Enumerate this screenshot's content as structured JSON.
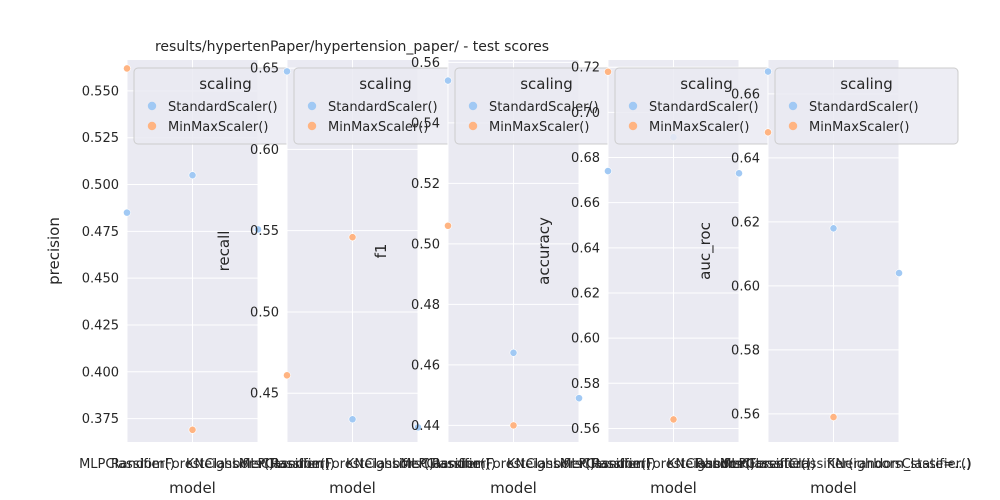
{
  "chart_data": [
    {
      "type": "scatter",
      "title": "results/hypertenPaper/hypertension_paper/ - test scores",
      "xlabel": "model",
      "ylabel": "precision",
      "ylim": [
        0.3625,
        0.5665
      ],
      "yticks": [
        "0.375",
        "0.400",
        "0.425",
        "0.450",
        "0.475",
        "0.500",
        "0.525",
        "0.550"
      ],
      "categories": [
        "MLPClassifier()",
        "RandomForestClassifier()",
        "KNeighborsClassifier()"
      ],
      "legend_title": "scaling",
      "legend_labels": [
        "StandardScaler()",
        "MinMaxScaler()"
      ],
      "series": [
        {
          "name": "StandardScaler()",
          "values": [
            0.485,
            0.505,
            0.476
          ]
        },
        {
          "name": "MinMaxScaler()",
          "values": [
            0.562,
            0.369,
            null
          ]
        }
      ]
    },
    {
      "type": "scatter",
      "title": "",
      "xlabel": "model",
      "ylabel": "recall",
      "ylim": [
        0.42,
        0.655
      ],
      "yticks": [
        "0.45",
        "0.50",
        "0.55",
        "0.60",
        "0.65"
      ],
      "categories": [
        "MLPClassifier()",
        "RandomForestClassifier()",
        "KNeighborsClassifier()"
      ],
      "legend_title": "scaling",
      "legend_labels": [
        "StandardScaler()",
        "MinMaxScaler()"
      ],
      "series": [
        {
          "name": "StandardScaler()",
          "values": [
            0.648,
            0.434,
            0.429
          ]
        },
        {
          "name": "MinMaxScaler()",
          "values": [
            0.461,
            0.546,
            null
          ]
        }
      ]
    },
    {
      "type": "scatter",
      "title": "",
      "xlabel": "model",
      "ylabel": "f1",
      "ylim": [
        0.4345,
        0.5608
      ],
      "yticks": [
        "0.44",
        "0.46",
        "0.48",
        "0.50",
        "0.52",
        "0.54",
        "0.56"
      ],
      "categories": [
        "MLPClassifier()",
        "RandomForestClassifier()",
        "KNeighborsClassifier()"
      ],
      "legend_title": "scaling",
      "legend_labels": [
        "StandardScaler()",
        "MinMaxScaler()"
      ],
      "series": [
        {
          "name": "StandardScaler()",
          "values": [
            0.554,
            0.464,
            0.449
          ]
        },
        {
          "name": "MinMaxScaler()",
          "values": [
            0.506,
            0.44,
            null
          ]
        }
      ]
    },
    {
      "type": "scatter",
      "title": "",
      "xlabel": "model",
      "ylabel": "accuracy",
      "ylim": [
        0.554,
        0.7232
      ],
      "yticks": [
        "0.56",
        "0.58",
        "0.60",
        "0.62",
        "0.64",
        "0.66",
        "0.68",
        "0.70",
        "0.72"
      ],
      "categories": [
        "MLPClassifier()",
        "RandomForestClassifier()",
        "KNeighborsClassifier()"
      ],
      "legend_title": "scaling",
      "legend_labels": [
        "StandardScaler()",
        "MinMaxScaler()"
      ],
      "series": [
        {
          "name": "StandardScaler()",
          "values": [
            0.674,
            0.689,
            0.673
          ]
        },
        {
          "name": "MinMaxScaler()",
          "values": [
            0.718,
            0.564,
            null
          ]
        }
      ]
    },
    {
      "type": "scatter",
      "title": "",
      "xlabel": "model",
      "ylabel": "auc_roc",
      "ylim": [
        0.5512,
        0.6706
      ],
      "yticks": [
        "0.56",
        "0.58",
        "0.60",
        "0.62",
        "0.64",
        "0.66"
      ],
      "categories": [
        "MLPClassifier()",
        "RandomForestClassifier()",
        "KNeighborsClassifier()"
      ],
      "x_tick_labels": [
        "RandomForestClassifier(random_state=...)"
      ],
      "legend_title": "scaling",
      "legend_labels": [
        "StandardScaler()",
        "MinMaxScaler()"
      ],
      "series": [
        {
          "name": "StandardScaler()",
          "values": [
            0.667,
            0.618,
            0.604
          ]
        },
        {
          "name": "MinMaxScaler()",
          "values": [
            0.648,
            0.559,
            null
          ]
        }
      ]
    }
  ],
  "colors": {
    "standard": "#a1c9f4",
    "minmax": "#ffb482",
    "axes_bg": "#eaeaf2",
    "grid": "#ffffff",
    "text": "#262626"
  }
}
